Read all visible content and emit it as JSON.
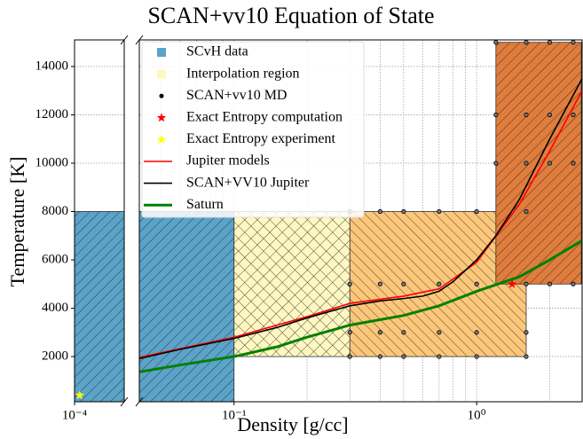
{
  "chart_data": {
    "type": "line",
    "title": "SCAN+vv10 Equation of State",
    "x_label": "Density [g/cc]",
    "y_label": "Temperature [K]",
    "log_x": true,
    "grid": true,
    "legend": "upper left",
    "ylim": [
      130,
      15100
    ],
    "yticks": [
      2000,
      4000,
      6000,
      8000,
      10000,
      12000,
      14000
    ],
    "panels": [
      {
        "xlim": [
          0.0001,
          0.00016
        ],
        "xticks": [
          {
            "value": 0.0001,
            "label": "10⁻⁴"
          }
        ]
      },
      {
        "xlim": [
          0.0407,
          2.72
        ],
        "xticks": [
          {
            "value": 0.1,
            "label": "10⁻¹"
          },
          {
            "value": 1,
            "label": "10⁰"
          }
        ],
        "minor_xticks": [
          0.05,
          0.06,
          0.07,
          0.08,
          0.09,
          0.2,
          0.3,
          0.4,
          0.5,
          0.6,
          0.7,
          0.8,
          0.9,
          2
        ]
      }
    ],
    "regions": [
      {
        "color": "#fdc77a",
        "hatch": "back",
        "x": [
          0.3,
          1.6
        ],
        "values": [
          2000,
          8000
        ]
      },
      {
        "color": "#e07d3c",
        "hatch": "fwd",
        "x": [
          1.2,
          2.7
        ],
        "values": [
          5000,
          15000
        ]
      }
    ],
    "series": [
      {
        "name": "SCvH data",
        "kind": "region",
        "color": "#5ba3c9",
        "hatch": "fwd",
        "x": [
          0.0001,
          0.1
        ],
        "values": [
          0,
          8000
        ]
      },
      {
        "name": "Interpolation region",
        "kind": "region",
        "color": "#fff7c2",
        "hatch": "cross",
        "x": [
          0.1,
          0.3
        ],
        "values": [
          2000,
          8000
        ]
      },
      {
        "name": "SCAN+vv10 MD",
        "kind": "dot",
        "color": "#000000",
        "x": [
          0.3,
          0.4,
          0.5,
          0.7,
          1.0,
          1.6,
          0.3,
          0.4,
          0.5,
          0.7,
          1.0,
          1.6,
          0.3,
          0.4,
          0.5,
          0.7,
          1.0,
          1.6,
          0.3,
          0.4,
          0.5,
          0.7,
          1.0,
          1.6,
          2.0,
          2.5,
          1.2,
          1.6,
          2.0,
          2.5,
          1.2,
          1.6,
          2.0,
          2.5,
          1.2,
          1.6,
          2.0,
          2.5
        ],
        "values": [
          2000,
          2000,
          2000,
          2000,
          2000,
          2000,
          3000,
          3000,
          3000,
          3000,
          3000,
          3000,
          5000,
          5000,
          5000,
          5000,
          5000,
          5000,
          8000,
          8000,
          8000,
          8000,
          8000,
          8000,
          5000,
          5000,
          10000,
          10000,
          10000,
          10000,
          12000,
          12000,
          12000,
          12000,
          15000,
          15000,
          15000,
          15000
        ]
      },
      {
        "name": "Exact Entropy computation",
        "kind": "star",
        "color": "#ff0000",
        "x": [
          1.4
        ],
        "values": [
          5000
        ]
      },
      {
        "name": "Exact Entropy experiment",
        "kind": "star",
        "color": "#ffff00",
        "x": [
          0.000105
        ],
        "values": [
          400
        ]
      },
      {
        "name": "Jupiter models",
        "kind": "line",
        "color": "#ff0000",
        "x": [
          0.04,
          0.1,
          0.2,
          0.3,
          0.5,
          0.7,
          1.0,
          1.5,
          2.0,
          2.72
        ],
        "values": [
          1950,
          2800,
          3650,
          4200,
          4500,
          4800,
          5900,
          8300,
          10500,
          13000
        ]
      },
      {
        "name": "SCAN+VV10 Jupiter",
        "kind": "line",
        "color": "#000000",
        "x": [
          0.04,
          0.06,
          0.1,
          0.15,
          0.2,
          0.3,
          0.4,
          0.5,
          0.6,
          0.7,
          0.8,
          1.0,
          1.2,
          1.5,
          2.0,
          2.72
        ],
        "values": [
          1900,
          2300,
          2750,
          3200,
          3600,
          4100,
          4300,
          4400,
          4500,
          4700,
          5100,
          6000,
          7000,
          8500,
          11000,
          13500
        ]
      },
      {
        "name": "Saturn",
        "kind": "line",
        "color": "#008000",
        "x": [
          0.04,
          0.06,
          0.1,
          0.15,
          0.2,
          0.3,
          0.5,
          0.7,
          1.0,
          1.5,
          2.0,
          2.72
        ],
        "values": [
          1350,
          1650,
          2000,
          2400,
          2800,
          3300,
          3700,
          4100,
          4700,
          5300,
          6000,
          6800
        ]
      }
    ]
  }
}
